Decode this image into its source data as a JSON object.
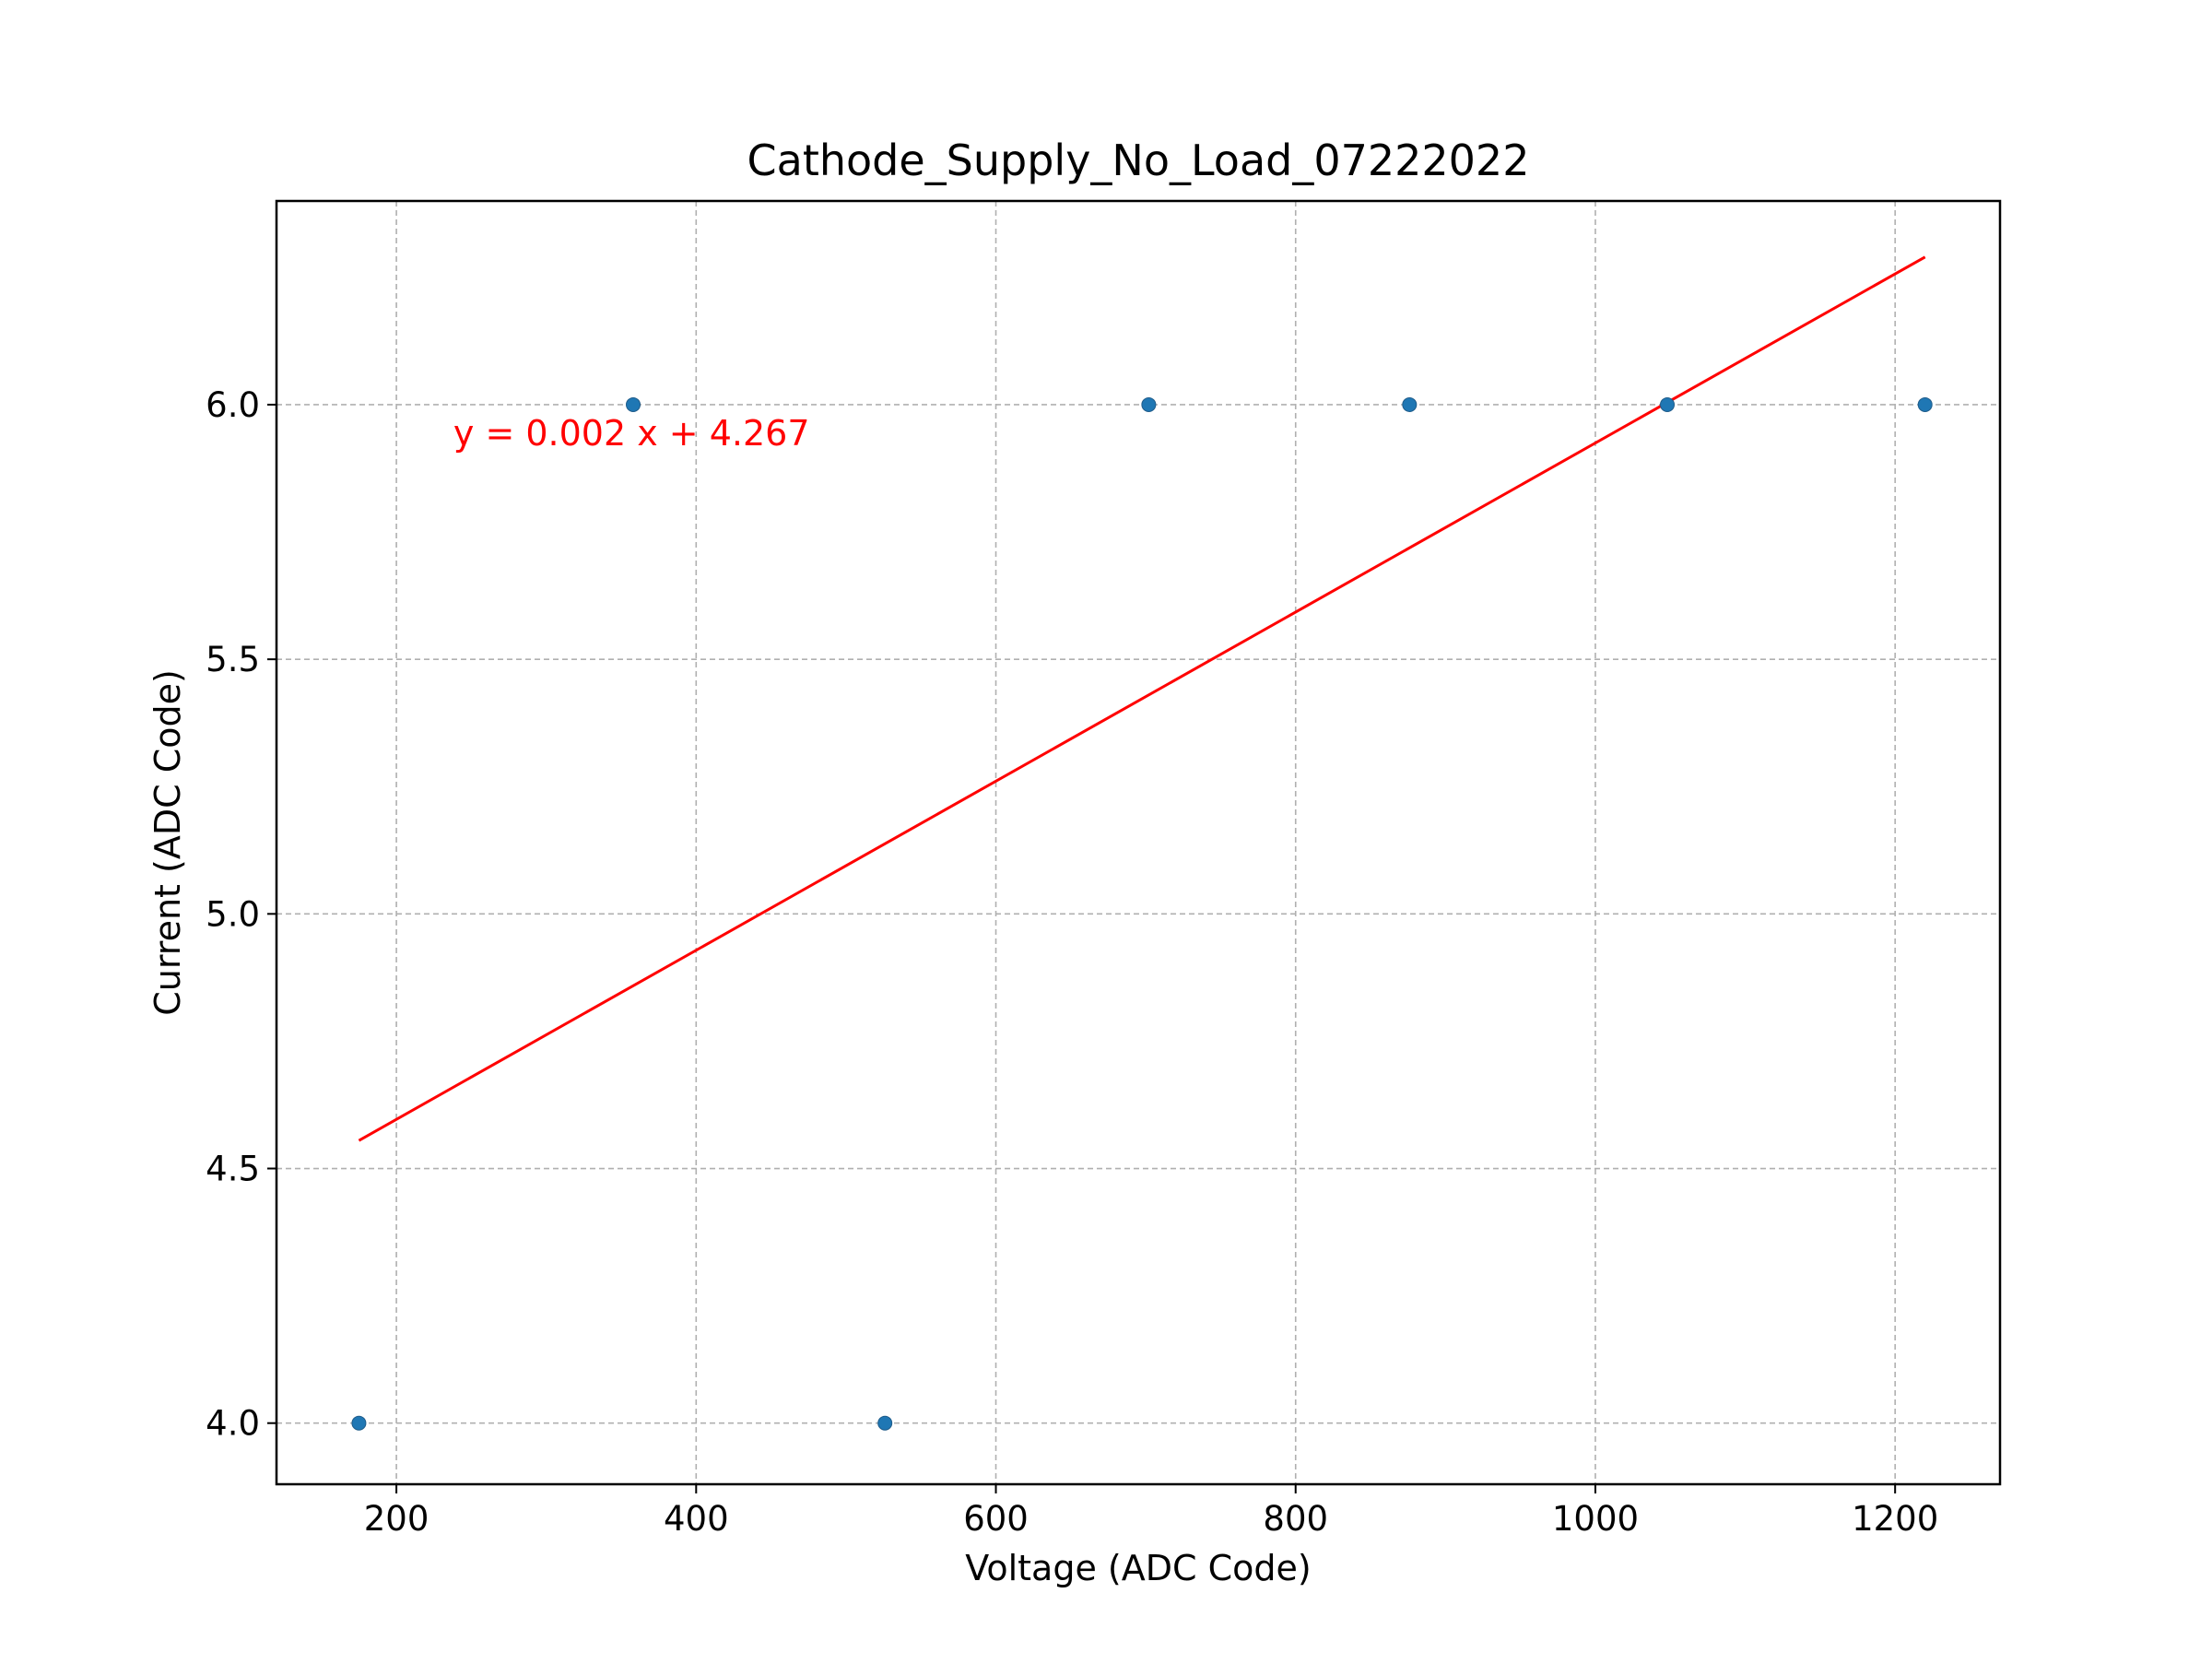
{
  "chart_data": {
    "type": "scatter",
    "title": "Cathode_Supply_No_Load_07222022",
    "xlabel": "Voltage (ADC Code)",
    "ylabel": "Current (ADC Code)",
    "xlim": [
      120,
      1270
    ],
    "ylim": [
      3.88,
      6.4
    ],
    "xticks": [
      200,
      400,
      600,
      800,
      1000,
      1200
    ],
    "xtick_labels": [
      "200",
      "400",
      "600",
      "800",
      "1000",
      "1200"
    ],
    "yticks": [
      4.0,
      4.5,
      5.0,
      5.5,
      6.0
    ],
    "ytick_labels": [
      "4.0",
      "4.5",
      "5.0",
      "5.5",
      "6.0"
    ],
    "grid": true,
    "series": [
      {
        "points": [
          {
            "x": 175,
            "y": 4.0
          },
          {
            "x": 358,
            "y": 6.0
          },
          {
            "x": 526,
            "y": 4.0
          },
          {
            "x": 702,
            "y": 6.0
          },
          {
            "x": 876,
            "y": 6.0
          },
          {
            "x": 1048,
            "y": 6.0
          },
          {
            "x": 1220,
            "y": 6.0
          }
        ],
        "color": "#1f77b4"
      }
    ],
    "fit_line": {
      "x": [
        175,
        1220
      ],
      "y": [
        4.555,
        6.29
      ],
      "color": "#ff0000"
    },
    "annotation": {
      "text": "y = 0.002 x + 4.267",
      "x": 238,
      "y": 5.92,
      "color": "#ff0000"
    }
  }
}
